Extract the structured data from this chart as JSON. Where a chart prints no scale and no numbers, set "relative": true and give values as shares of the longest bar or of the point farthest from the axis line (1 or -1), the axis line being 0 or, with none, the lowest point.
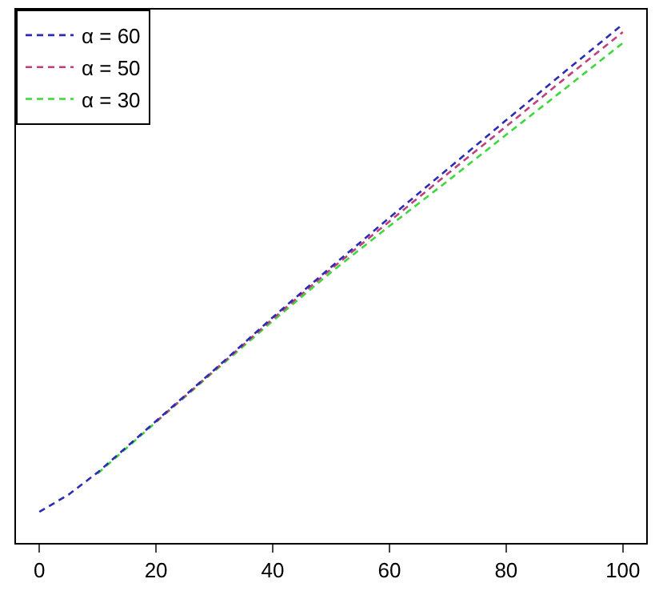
{
  "chart_data": {
    "type": "line",
    "relative": true,
    "x": [
      0,
      5,
      10,
      20,
      30,
      40,
      50,
      60,
      70,
      80,
      90,
      100
    ],
    "xlim": [
      -4,
      104
    ],
    "xticks": [
      0,
      20,
      40,
      60,
      80,
      100
    ],
    "line_style": "dashed",
    "marker": "none",
    "legend": "top left",
    "series": [
      {
        "name": "α = 60",
        "color": "#2b2bb8",
        "values": [
          0.06,
          0.093,
          0.136,
          0.235,
          0.334,
          0.435,
          0.532,
          0.627,
          0.721,
          0.815,
          0.908,
          1
        ]
      },
      {
        "name": "α = 50",
        "color": "#c0407a",
        "values": [
          null,
          null,
          null,
          0.234,
          0.333,
          0.432,
          0.528,
          0.62,
          0.712,
          0.803,
          0.895,
          0.985
        ]
      },
      {
        "name": "α = 30",
        "color": "#3cd83c",
        "values": [
          null,
          null,
          0.134,
          0.233,
          0.331,
          0.428,
          0.522,
          0.611,
          0.698,
          0.787,
          0.875,
          0.964
        ]
      }
    ]
  }
}
